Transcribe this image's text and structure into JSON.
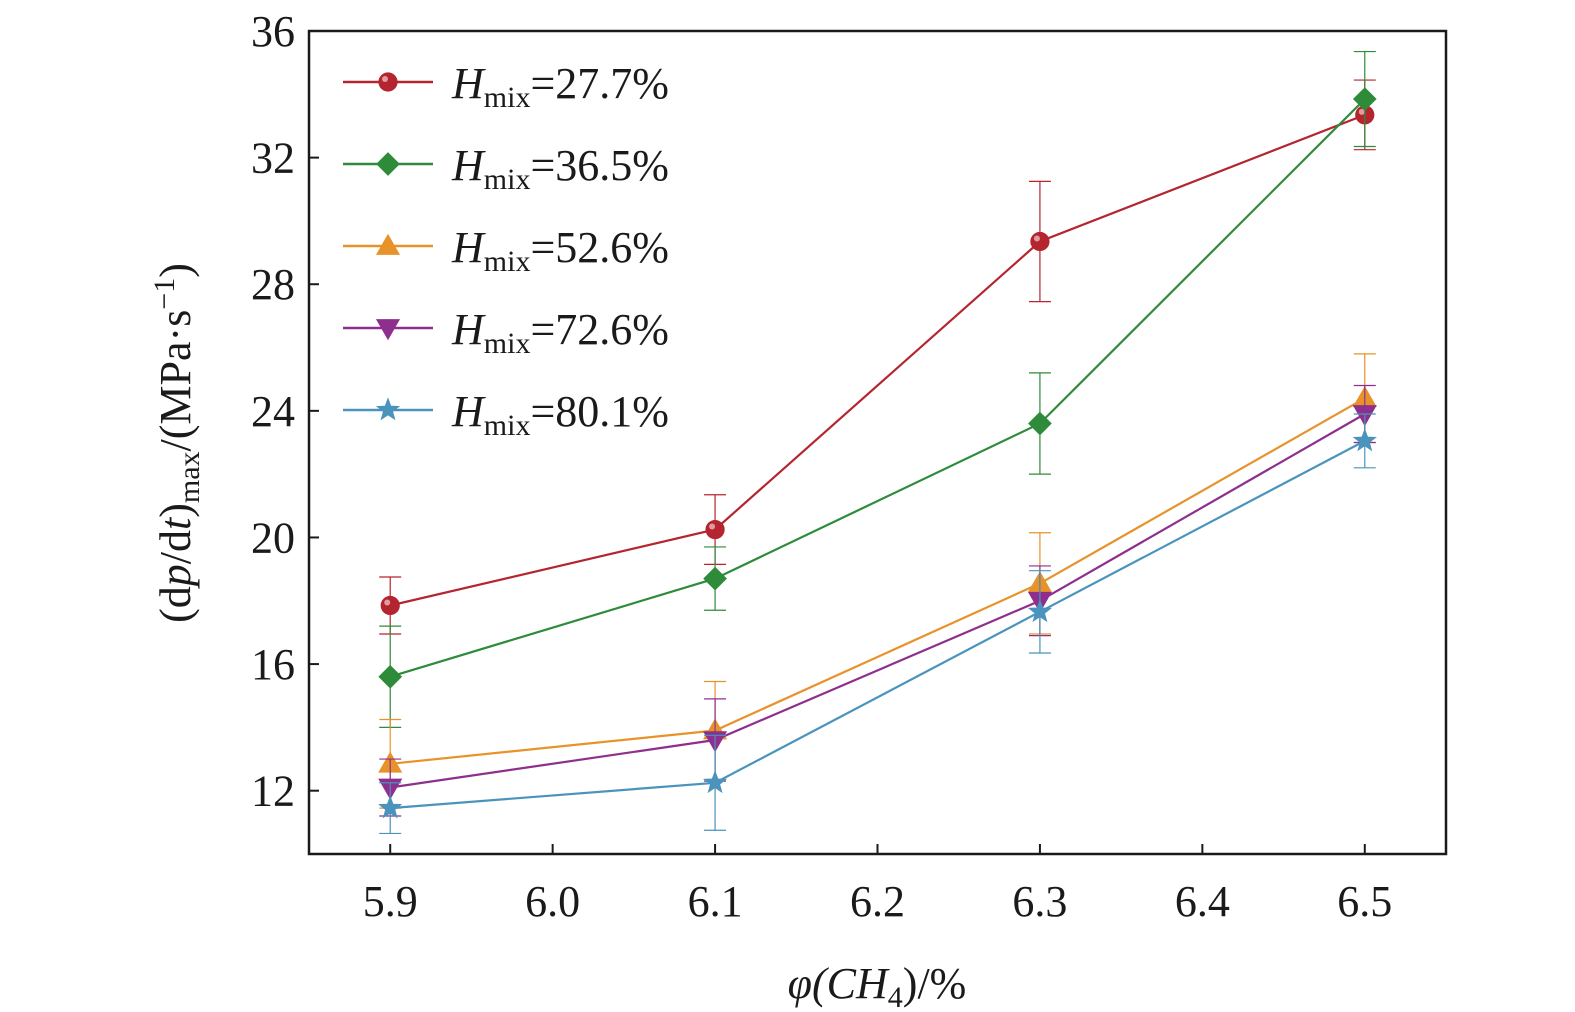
{
  "chart_data": {
    "type": "line",
    "x": [
      5.9,
      6.1,
      6.3,
      6.5
    ],
    "xlim": [
      5.85,
      6.55
    ],
    "ylim": [
      10,
      36
    ],
    "xticks": [
      "5.9",
      "6.0",
      "6.1",
      "6.2",
      "6.3",
      "6.4",
      "6.5"
    ],
    "yticks": [
      "12",
      "16",
      "20",
      "24",
      "28",
      "32",
      "36"
    ],
    "xlabel": {
      "prefix": "φ(CH",
      "sub": "4",
      "suffix": ")/%"
    },
    "ylabel": {
      "p1": "(d",
      "p": "p",
      "p2": "/d",
      "t": "t",
      "p3": ")",
      "sub": "max",
      "p4": "/(MPa·s",
      "sup": "−1",
      "p5": ")"
    },
    "grid": false,
    "legend_position": "top-left",
    "series": [
      {
        "name_var": "H",
        "name_sub": "mix",
        "name_value": "=27.7%",
        "marker": "circle",
        "color": "#b5252f",
        "values": [
          17.85,
          20.25,
          29.35,
          33.35
        ],
        "err": [
          0.9,
          1.1,
          1.9,
          1.1
        ]
      },
      {
        "name_var": "H",
        "name_sub": "mix",
        "name_value": "=36.5%",
        "marker": "diamond",
        "color": "#2e8b3a",
        "values": [
          15.6,
          18.7,
          23.6,
          33.85
        ],
        "err": [
          1.6,
          1.0,
          1.6,
          1.5
        ]
      },
      {
        "name_var": "H",
        "name_sub": "mix",
        "name_value": "=52.6%",
        "marker": "triangle-up",
        "color": "#e8922a",
        "values": [
          12.85,
          13.9,
          18.55,
          24.4
        ],
        "err": [
          1.4,
          1.55,
          1.6,
          1.4
        ]
      },
      {
        "name_var": "H",
        "name_sub": "mix",
        "name_value": "=72.6%",
        "marker": "triangle-down",
        "color": "#8e2f8e",
        "values": [
          12.1,
          13.6,
          18.0,
          23.9
        ],
        "err": [
          0.9,
          1.3,
          1.1,
          0.9
        ]
      },
      {
        "name_var": "H",
        "name_sub": "mix",
        "name_value": "=80.1%",
        "marker": "star",
        "color": "#4a93bd",
        "values": [
          11.45,
          12.25,
          17.65,
          23.05
        ],
        "err": [
          0.8,
          1.5,
          1.3,
          0.85
        ]
      }
    ]
  }
}
